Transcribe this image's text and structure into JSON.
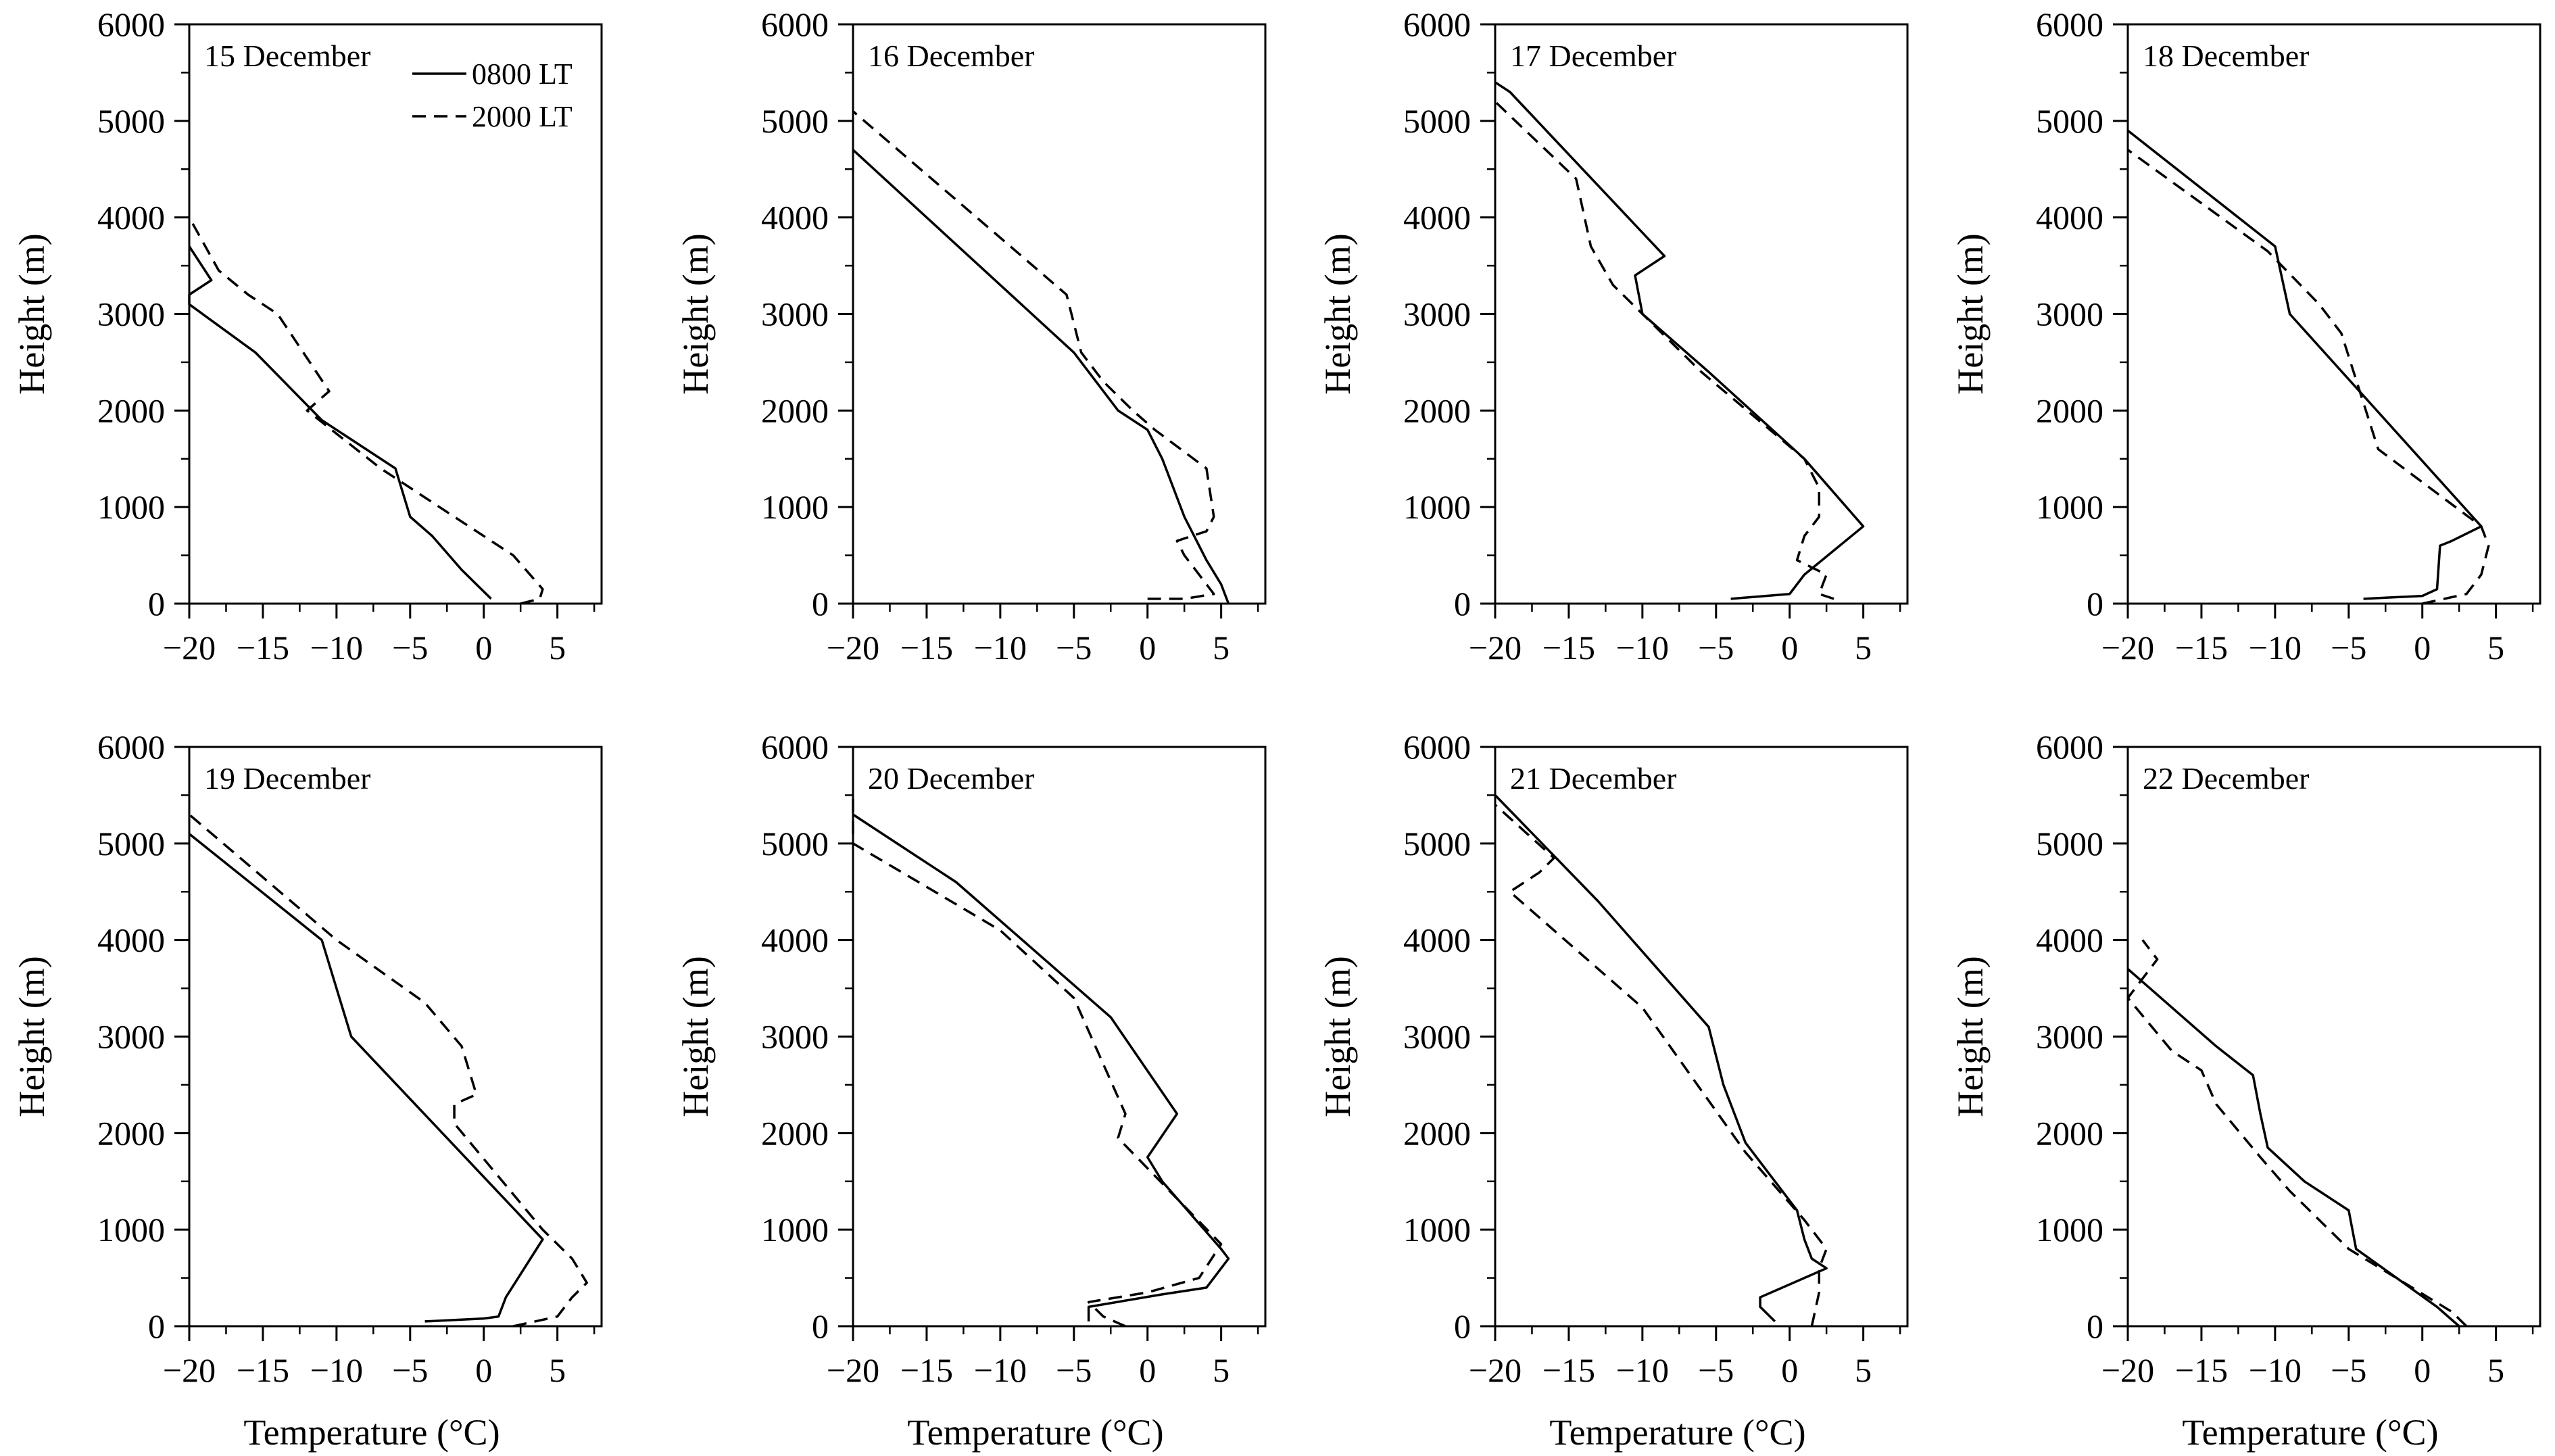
{
  "figure": {
    "x_axis_title": "Temperature (°C)",
    "y_axis_title": "Height (m)",
    "legend": [
      {
        "label": "0800 LT",
        "style": "solid"
      },
      {
        "label": "2000 LT",
        "style": "dashed"
      }
    ],
    "line_color": "#000000"
  },
  "chart_data": [
    {
      "type": "line",
      "title": "15 December",
      "xlabel": "Temperature (°C)",
      "ylabel": "Height (m)",
      "xlim": [
        -20,
        8
      ],
      "ylim": [
        0,
        6000
      ],
      "xticks": [
        -20,
        -15,
        -10,
        -5,
        0,
        5
      ],
      "yticks": [
        0,
        1000,
        2000,
        3000,
        4000,
        5000,
        6000
      ],
      "series": [
        {
          "name": "0800 LT",
          "style": "solid",
          "points": [
            [
              0.5,
              50
            ],
            [
              -1.5,
              350
            ],
            [
              -3.5,
              700
            ],
            [
              -5,
              900
            ],
            [
              -6,
              1400
            ],
            [
              -11,
              1900
            ],
            [
              -15.5,
              2600
            ],
            [
              -20,
              3100
            ],
            [
              -20,
              3200
            ],
            [
              -18.5,
              3350
            ],
            [
              -20,
              3700
            ]
          ]
        },
        {
          "name": "2000 LT",
          "style": "dashed",
          "points": [
            [
              2.5,
              0
            ],
            [
              3.8,
              50
            ],
            [
              4,
              150
            ],
            [
              2,
              500
            ],
            [
              -2,
              900
            ],
            [
              -6,
              1300
            ],
            [
              -7,
              1400
            ],
            [
              -12,
              2000
            ],
            [
              -10.5,
              2200
            ],
            [
              -14,
              3000
            ],
            [
              -16,
              3200
            ],
            [
              -18,
              3450
            ],
            [
              -20,
              4000
            ]
          ]
        }
      ]
    },
    {
      "type": "line",
      "title": "16 December",
      "xlabel": "Temperature (°C)",
      "ylabel": "Height (m)",
      "xlim": [
        -20,
        8
      ],
      "ylim": [
        0,
        6000
      ],
      "xticks": [
        -20,
        -15,
        -10,
        -5,
        0,
        5
      ],
      "yticks": [
        0,
        1000,
        2000,
        3000,
        4000,
        5000,
        6000
      ],
      "series": [
        {
          "name": "0800 LT",
          "style": "solid",
          "points": [
            [
              5.5,
              0
            ],
            [
              5,
              200
            ],
            [
              4,
              450
            ],
            [
              2.5,
              900
            ],
            [
              1,
              1500
            ],
            [
              0,
              1800
            ],
            [
              -2,
              2000
            ],
            [
              -5,
              2600
            ],
            [
              -20,
              4700
            ]
          ]
        },
        {
          "name": "2000 LT",
          "style": "dashed",
          "points": [
            [
              0,
              50
            ],
            [
              2.5,
              50
            ],
            [
              4.5,
              100
            ],
            [
              3.5,
              300
            ],
            [
              2.5,
              500
            ],
            [
              2,
              650
            ],
            [
              4,
              750
            ],
            [
              4.5,
              900
            ],
            [
              4,
              1400
            ],
            [
              0.5,
              1800
            ],
            [
              -1,
              2000
            ],
            [
              -3,
              2300
            ],
            [
              -4.5,
              2600
            ],
            [
              -5.5,
              3200
            ],
            [
              -20,
              5100
            ]
          ]
        }
      ]
    },
    {
      "type": "line",
      "title": "17 December",
      "xlabel": "Temperature (°C)",
      "ylabel": "Height (m)",
      "xlim": [
        -20,
        8
      ],
      "ylim": [
        0,
        6000
      ],
      "xticks": [
        -20,
        -15,
        -10,
        -5,
        0,
        5
      ],
      "yticks": [
        0,
        1000,
        2000,
        3000,
        4000,
        5000,
        6000
      ],
      "series": [
        {
          "name": "0800 LT",
          "style": "solid",
          "points": [
            [
              -4,
              50
            ],
            [
              0,
              100
            ],
            [
              1,
              300
            ],
            [
              5,
              800
            ],
            [
              1,
              1500
            ],
            [
              -5.5,
              2400
            ],
            [
              -10,
              3000
            ],
            [
              -10.5,
              3400
            ],
            [
              -8.5,
              3600
            ],
            [
              -19,
              5300
            ],
            [
              -20,
              5400
            ]
          ]
        },
        {
          "name": "2000 LT",
          "style": "dashed",
          "points": [
            [
              3,
              50
            ],
            [
              2,
              100
            ],
            [
              2.5,
              300
            ],
            [
              0.5,
              450
            ],
            [
              1,
              700
            ],
            [
              2,
              900
            ],
            [
              2,
              1200
            ],
            [
              1,
              1500
            ],
            [
              -6,
              2400
            ],
            [
              -12,
              3300
            ],
            [
              -13.5,
              3700
            ],
            [
              -14.5,
              4400
            ],
            [
              -20,
              5200
            ]
          ]
        }
      ]
    },
    {
      "type": "line",
      "title": "18 December",
      "xlabel": "Temperature (°C)",
      "ylabel": "Height (m)",
      "xlim": [
        -20,
        8
      ],
      "ylim": [
        0,
        6000
      ],
      "xticks": [
        -20,
        -15,
        -10,
        -5,
        0,
        5
      ],
      "yticks": [
        0,
        1000,
        2000,
        3000,
        4000,
        5000,
        6000
      ],
      "series": [
        {
          "name": "0800 LT",
          "style": "solid",
          "points": [
            [
              -4,
              50
            ],
            [
              0,
              80
            ],
            [
              1,
              150
            ],
            [
              1.2,
              600
            ],
            [
              2,
              650
            ],
            [
              4,
              800
            ],
            [
              -9,
              3000
            ],
            [
              -10,
              3700
            ],
            [
              -20,
              4900
            ]
          ]
        },
        {
          "name": "2000 LT",
          "style": "dashed",
          "points": [
            [
              0,
              0
            ],
            [
              3,
              100
            ],
            [
              4,
              300
            ],
            [
              4.5,
              600
            ],
            [
              4,
              800
            ],
            [
              -3,
              1600
            ],
            [
              -5.5,
              2800
            ],
            [
              -7,
              3100
            ],
            [
              -10.5,
              3650
            ],
            [
              -20,
              4700
            ]
          ]
        }
      ]
    },
    {
      "type": "line",
      "title": "19 December",
      "xlabel": "Temperature (°C)",
      "ylabel": "Height (m)",
      "xlim": [
        -20,
        8
      ],
      "ylim": [
        0,
        6000
      ],
      "xticks": [
        -20,
        -15,
        -10,
        -5,
        0,
        5
      ],
      "yticks": [
        0,
        1000,
        2000,
        3000,
        4000,
        5000,
        6000
      ],
      "series": [
        {
          "name": "0800 LT",
          "style": "solid",
          "points": [
            [
              -4,
              50
            ],
            [
              0,
              80
            ],
            [
              1,
              100
            ],
            [
              1.5,
              300
            ],
            [
              4,
              900
            ],
            [
              -9,
              3000
            ],
            [
              -11,
              4000
            ],
            [
              -20,
              5100
            ]
          ]
        },
        {
          "name": "2000 LT",
          "style": "dashed",
          "points": [
            [
              2,
              0
            ],
            [
              5,
              100
            ],
            [
              6,
              300
            ],
            [
              7,
              450
            ],
            [
              6,
              700
            ],
            [
              4,
              1000
            ],
            [
              -2,
              2100
            ],
            [
              -2,
              2300
            ],
            [
              -0.5,
              2400
            ],
            [
              -1.5,
              2900
            ],
            [
              -4,
              3350
            ],
            [
              -10,
              4000
            ],
            [
              -20,
              5300
            ]
          ]
        }
      ]
    },
    {
      "type": "line",
      "title": "20 December",
      "xlabel": "Temperature (°C)",
      "ylabel": "Height (m)",
      "xlim": [
        -20,
        8
      ],
      "ylim": [
        0,
        6000
      ],
      "xticks": [
        -20,
        -15,
        -10,
        -5,
        0,
        5
      ],
      "yticks": [
        0,
        1000,
        2000,
        3000,
        4000,
        5000,
        6000
      ],
      "series": [
        {
          "name": "0800 LT",
          "style": "solid",
          "points": [
            [
              -4,
              50
            ],
            [
              -4,
              200
            ],
            [
              1,
              330
            ],
            [
              4,
              400
            ],
            [
              5.5,
              700
            ],
            [
              5,
              800
            ],
            [
              1,
              1500
            ],
            [
              0,
              1750
            ],
            [
              2,
              2200
            ],
            [
              -2.5,
              3200
            ],
            [
              -13,
              4600
            ],
            [
              -20,
              5300
            ]
          ]
        },
        {
          "name": "2000 LT",
          "style": "dashed",
          "points": [
            [
              -1.5,
              0
            ],
            [
              -3,
              100
            ],
            [
              -4,
              250
            ],
            [
              0,
              350
            ],
            [
              3.5,
              500
            ],
            [
              5,
              850
            ],
            [
              1.5,
              1400
            ],
            [
              -2,
              1950
            ],
            [
              -1.5,
              2200
            ],
            [
              -5,
              3400
            ],
            [
              -10,
              4100
            ],
            [
              -20,
              5000
            ],
            [
              -20,
              5500
            ]
          ]
        }
      ]
    },
    {
      "type": "line",
      "title": "21 December",
      "xlabel": "Temperature (°C)",
      "ylabel": "Height (m)",
      "xlim": [
        -20,
        8
      ],
      "ylim": [
        0,
        6000
      ],
      "xticks": [
        -20,
        -15,
        -10,
        -5,
        0,
        5
      ],
      "yticks": [
        0,
        1000,
        2000,
        3000,
        4000,
        5000,
        6000
      ],
      "series": [
        {
          "name": "0800 LT",
          "style": "solid",
          "points": [
            [
              -1,
              50
            ],
            [
              -2,
              200
            ],
            [
              -2,
              300
            ],
            [
              2.5,
              600
            ],
            [
              1.5,
              700
            ],
            [
              1,
              900
            ],
            [
              0.5,
              1200
            ],
            [
              -3,
              1900
            ],
            [
              -4.5,
              2500
            ],
            [
              -5.5,
              3100
            ],
            [
              -13,
              4400
            ],
            [
              -20,
              5500
            ]
          ]
        },
        {
          "name": "2000 LT",
          "style": "dashed",
          "points": [
            [
              1.5,
              0
            ],
            [
              2,
              350
            ],
            [
              2,
              600
            ],
            [
              2.5,
              800
            ],
            [
              1,
              1100
            ],
            [
              -3,
              1800
            ],
            [
              -10,
              3300
            ],
            [
              -19,
              4500
            ],
            [
              -17,
              4700
            ],
            [
              -16,
              4850
            ],
            [
              -20,
              5400
            ]
          ]
        }
      ]
    },
    {
      "type": "line",
      "title": "22 December",
      "xlabel": "Temperature (°C)",
      "ylabel": "Height (m)",
      "xlim": [
        -20,
        8
      ],
      "ylim": [
        0,
        6000
      ],
      "xticks": [
        -20,
        -15,
        -10,
        -5,
        0,
        5
      ],
      "yticks": [
        0,
        1000,
        2000,
        3000,
        4000,
        5000,
        6000
      ],
      "series": [
        {
          "name": "0800 LT",
          "style": "solid",
          "points": [
            [
              2.5,
              0
            ],
            [
              1,
              200
            ],
            [
              -4.5,
              800
            ],
            [
              -5,
              1200
            ],
            [
              -8,
              1500
            ],
            [
              -10.5,
              1850
            ],
            [
              -11,
              2200
            ],
            [
              -11.5,
              2600
            ],
            [
              -14,
              2900
            ],
            [
              -20,
              3700
            ]
          ]
        },
        {
          "name": "2000 LT",
          "style": "dashed",
          "points": [
            [
              3,
              0
            ],
            [
              2,
              150
            ],
            [
              -5,
              800
            ],
            [
              -9,
              1400
            ],
            [
              -11,
              1750
            ],
            [
              -14,
              2300
            ],
            [
              -15,
              2650
            ],
            [
              -17,
              2850
            ],
            [
              -20,
              3400
            ],
            [
              -18,
              3800
            ],
            [
              -19,
              4000
            ]
          ]
        }
      ]
    }
  ]
}
